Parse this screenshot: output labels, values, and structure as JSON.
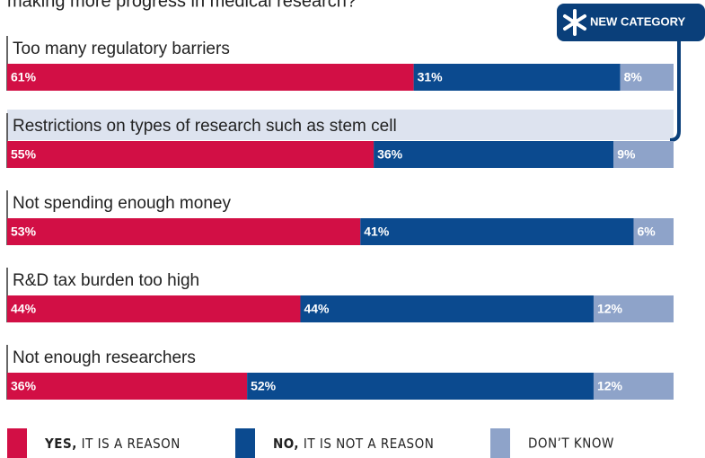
{
  "chart_data": {
    "type": "stacked_bar_horizontal",
    "title": "making more progress in medical research?",
    "annotation": "NEW CATEGORY",
    "categories": [
      "Too many regulatory barriers",
      "Restrictions on types of research such as stem cell",
      "Not spending enough money",
      "R&D tax burden too high",
      "Not enough researchers"
    ],
    "series": [
      {
        "name": "YES, IT IS A REASON",
        "color": "#d20f45",
        "values": [
          61,
          55,
          53,
          44,
          36
        ],
        "value_labels": [
          "61%",
          "55%",
          "53%",
          "44%",
          "36%"
        ]
      },
      {
        "name": "NO, IT IS NOT A REASON",
        "color": "#0b4a8f",
        "values": [
          31,
          36,
          41,
          44,
          52
        ],
        "value_labels": [
          "31%",
          "36%",
          "41%",
          "44%",
          "52%"
        ]
      },
      {
        "name": "DON’T KNOW",
        "color": "#8ea3c9",
        "values": [
          8,
          9,
          6,
          12,
          12
        ],
        "value_labels": [
          "8%",
          "9%",
          "6%",
          "12%",
          "12%"
        ]
      }
    ],
    "xlim": [
      0,
      100
    ]
  }
}
